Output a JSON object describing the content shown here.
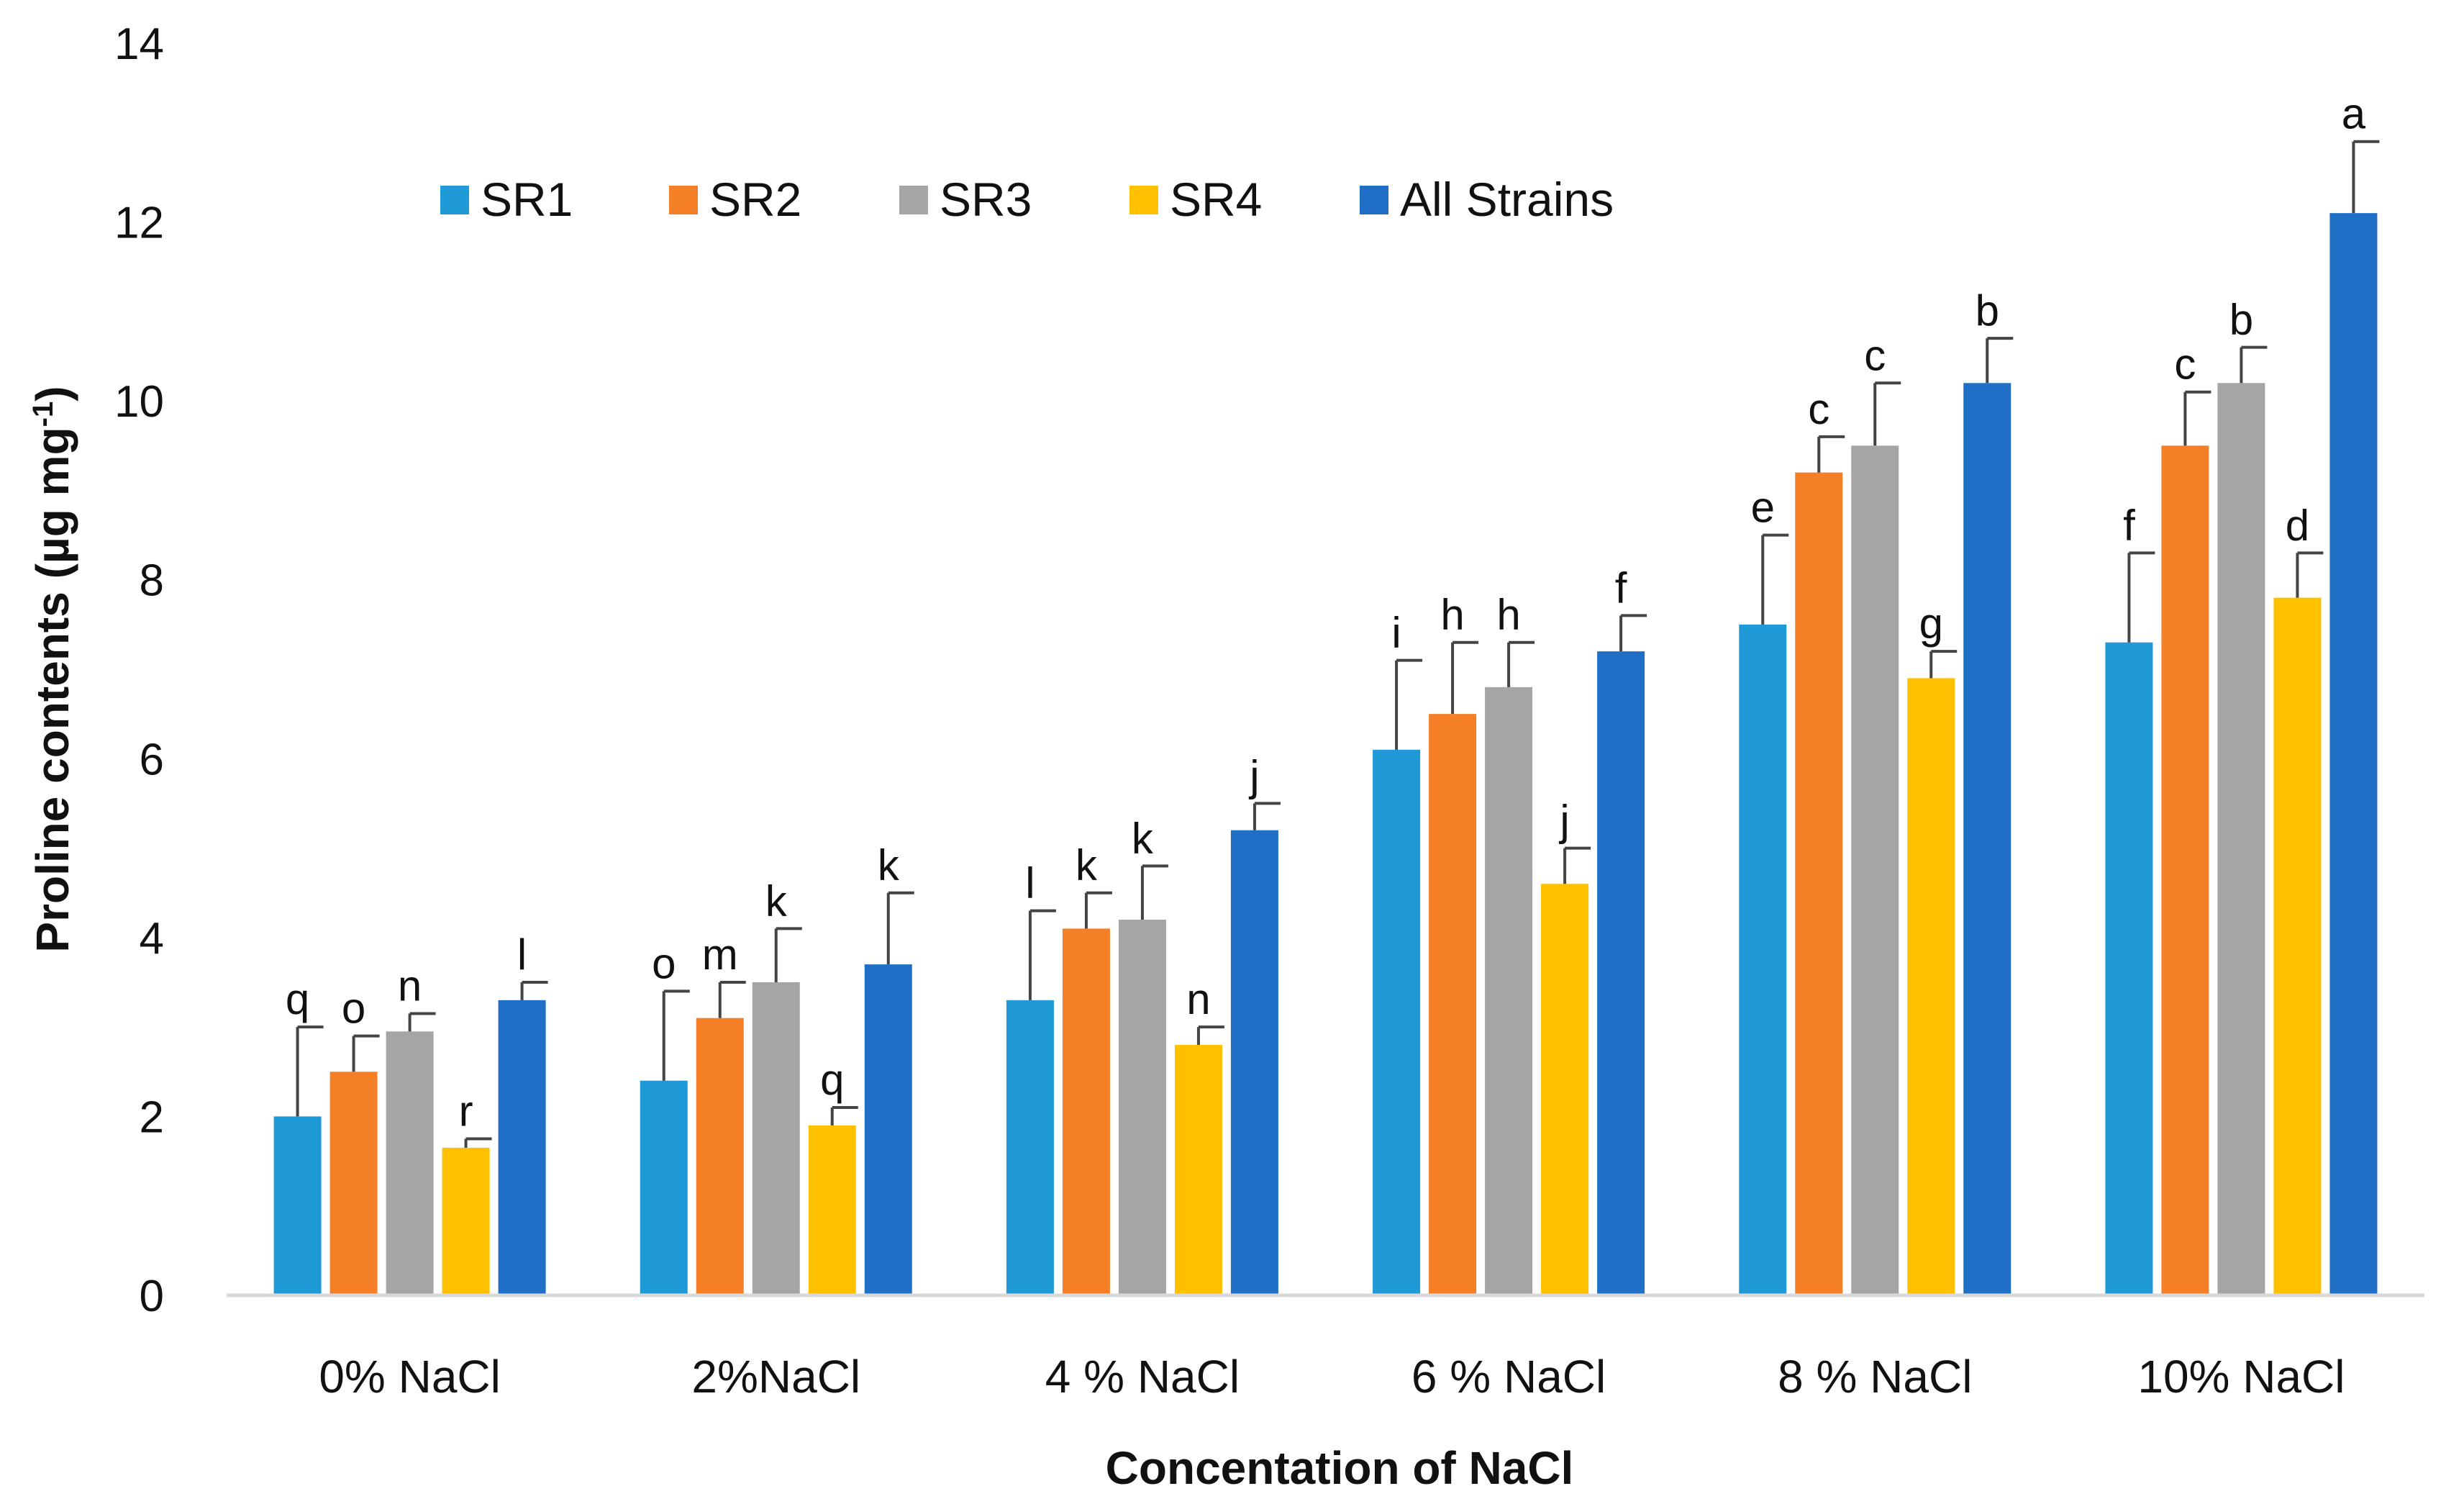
{
  "chart_data": {
    "type": "bar",
    "title": "",
    "xlabel": "Concentation of NaCl",
    "ylabel": {
      "prefix": "Proline contents (µg mg",
      "superscript": "-1",
      "suffix": ")"
    },
    "ylim": [
      0,
      14
    ],
    "yticks": [
      0,
      2,
      4,
      6,
      8,
      10,
      12,
      14
    ],
    "grid": false,
    "legend_position": "top",
    "categories": [
      "0% NaCl",
      "2%NaCl",
      "4 % NaCl",
      "6 % NaCl",
      "8 % NaCl",
      "10% NaCl"
    ],
    "series": [
      {
        "name": "SR1",
        "color": "#1f9ad6",
        "values": [
          2.0,
          2.4,
          3.3,
          6.1,
          7.5,
          7.3
        ],
        "errors": [
          1.0,
          1.0,
          1.0,
          1.0,
          1.0,
          1.0
        ],
        "letters": [
          "q",
          "o",
          "l",
          "i",
          "e",
          "f"
        ]
      },
      {
        "name": "SR2",
        "color": "#f57f26",
        "values": [
          2.5,
          3.1,
          4.1,
          6.5,
          9.2,
          9.5
        ],
        "errors": [
          0.4,
          0.4,
          0.4,
          0.8,
          0.4,
          0.6
        ],
        "letters": [
          "o",
          "m",
          "k",
          "h",
          "c",
          "c"
        ]
      },
      {
        "name": "SR3",
        "color": "#a5a5a5",
        "values": [
          2.95,
          3.5,
          4.2,
          6.8,
          9.5,
          10.2
        ],
        "errors": [
          0.2,
          0.6,
          0.6,
          0.5,
          0.7,
          0.4
        ],
        "letters": [
          "n",
          "k",
          "k",
          "h",
          "c",
          "b"
        ]
      },
      {
        "name": "SR4",
        "color": "#ffc000",
        "values": [
          1.65,
          1.9,
          2.8,
          4.6,
          6.9,
          7.8
        ],
        "errors": [
          0.1,
          0.2,
          0.2,
          0.4,
          0.3,
          0.5
        ],
        "letters": [
          "r",
          "q",
          "n",
          "j",
          "g",
          "d"
        ]
      },
      {
        "name": "All Strains",
        "color": "#1f6fc6",
        "values": [
          3.3,
          3.7,
          5.2,
          7.2,
          10.2,
          12.1
        ],
        "errors": [
          0.2,
          0.8,
          0.3,
          0.4,
          0.5,
          0.8
        ],
        "letters": [
          "l",
          "k",
          "j",
          "f",
          "b",
          "a"
        ]
      }
    ]
  }
}
